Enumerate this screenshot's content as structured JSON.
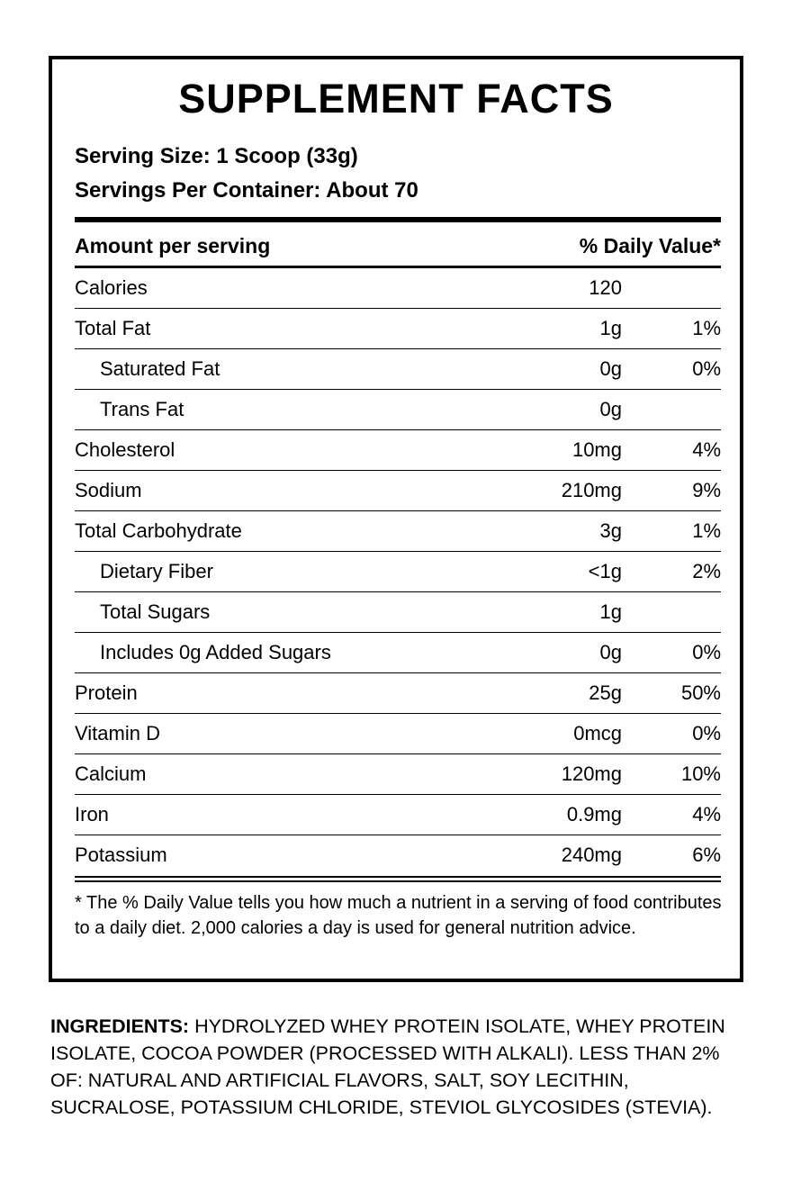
{
  "label": {
    "title": "SUPPLEMENT FACTS",
    "serving_size": "Serving Size: 1 Scoop (33g)",
    "servings_per_container": "Servings Per Container: About 70",
    "header_left": "Amount per serving",
    "header_right": "% Daily Value*",
    "rows": [
      {
        "name": "Calories",
        "amount": "120",
        "dv": ""
      },
      {
        "name": "Total Fat",
        "amount": "1g",
        "dv": "1%"
      },
      {
        "name": "Saturated Fat",
        "amount": "0g",
        "dv": "0%"
      },
      {
        "name": "Trans Fat",
        "amount": "0g",
        "dv": ""
      },
      {
        "name": "Cholesterol",
        "amount": "10mg",
        "dv": "4%"
      },
      {
        "name": "Sodium",
        "amount": "210mg",
        "dv": "9%"
      },
      {
        "name": "Total Carbohydrate",
        "amount": "3g",
        "dv": "1%"
      },
      {
        "name": "Dietary Fiber",
        "amount": "<1g",
        "dv": "2%"
      },
      {
        "name": "Total Sugars",
        "amount": "1g",
        "dv": ""
      },
      {
        "name": "Includes 0g Added Sugars",
        "amount": "0g",
        "dv": "0%"
      },
      {
        "name": "Protein",
        "amount": "25g",
        "dv": "50%"
      },
      {
        "name": "Vitamin D",
        "amount": "0mcg",
        "dv": "0%"
      },
      {
        "name": "Calcium",
        "amount": "120mg",
        "dv": "10%"
      },
      {
        "name": "Iron",
        "amount": "0.9mg",
        "dv": "4%"
      },
      {
        "name": "Potassium",
        "amount": "240mg",
        "dv": "6%"
      }
    ],
    "footnote": "* The % Daily Value tells you how much a nutrient in a serving of food contributes to a daily diet. 2,000 calories a day is used for general nutrition advice."
  },
  "ingredients": {
    "label": "INGREDIENTS:",
    "text": " HYDROLYZED WHEY PROTEIN ISOLATE, WHEY PROTEIN ISOLATE, COCOA POWDER (PROCESSED WITH ALKALI). LESS THAN 2% OF: NATURAL AND ARTIFICIAL FLAVORS, SALT, SOY LECITHIN, SUCRALOSE, POTASSIUM CHLORIDE, STEVIOL GLYCOSIDES (STEVIA)."
  }
}
